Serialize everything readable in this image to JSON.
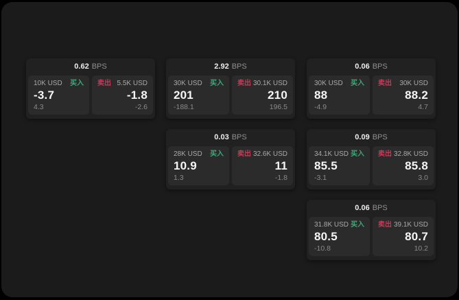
{
  "page": {
    "bps_unit": "BPS",
    "buy_label": "买入",
    "sell_label": "卖出",
    "colors": {
      "page_bg": "#000000",
      "panel_bg": "#1b1b1c",
      "card_bg": "#212122",
      "tile_bg": "#2b2b2c",
      "buy_green": "#3fa878",
      "sell_red": "#c43b58"
    }
  },
  "cards": [
    {
      "bps": "0.62",
      "buy": {
        "size": "10K USD",
        "price": "-3.7",
        "delta": "4.3"
      },
      "sell": {
        "size": "5.5K USD",
        "price": "-1.8",
        "delta": "-2.6"
      }
    },
    {
      "bps": "2.92",
      "buy": {
        "size": "30K USD",
        "price": "201",
        "delta": "-188.1"
      },
      "sell": {
        "size": "30.1K USD",
        "price": "210",
        "delta": "196.5"
      }
    },
    {
      "bps": "0.06",
      "buy": {
        "size": "30K USD",
        "price": "88",
        "delta": "-4.9"
      },
      "sell": {
        "size": "30K USD",
        "price": "88.2",
        "delta": "4.7"
      }
    },
    {
      "bps": "0.03",
      "buy": {
        "size": "28K USD",
        "price": "10.9",
        "delta": "1.3"
      },
      "sell": {
        "size": "32.6K USD",
        "price": "11",
        "delta": "-1.8"
      }
    },
    {
      "bps": "0.09",
      "buy": {
        "size": "34.1K USD",
        "price": "85.5",
        "delta": "-3.1"
      },
      "sell": {
        "size": "32.8K USD",
        "price": "85.8",
        "delta": "3.0"
      }
    },
    {
      "bps": "0.06",
      "buy": {
        "size": "31.8K USD",
        "price": "80.5",
        "delta": "-10.8"
      },
      "sell": {
        "size": "39.1K USD",
        "price": "80.7",
        "delta": "10.2"
      }
    }
  ]
}
